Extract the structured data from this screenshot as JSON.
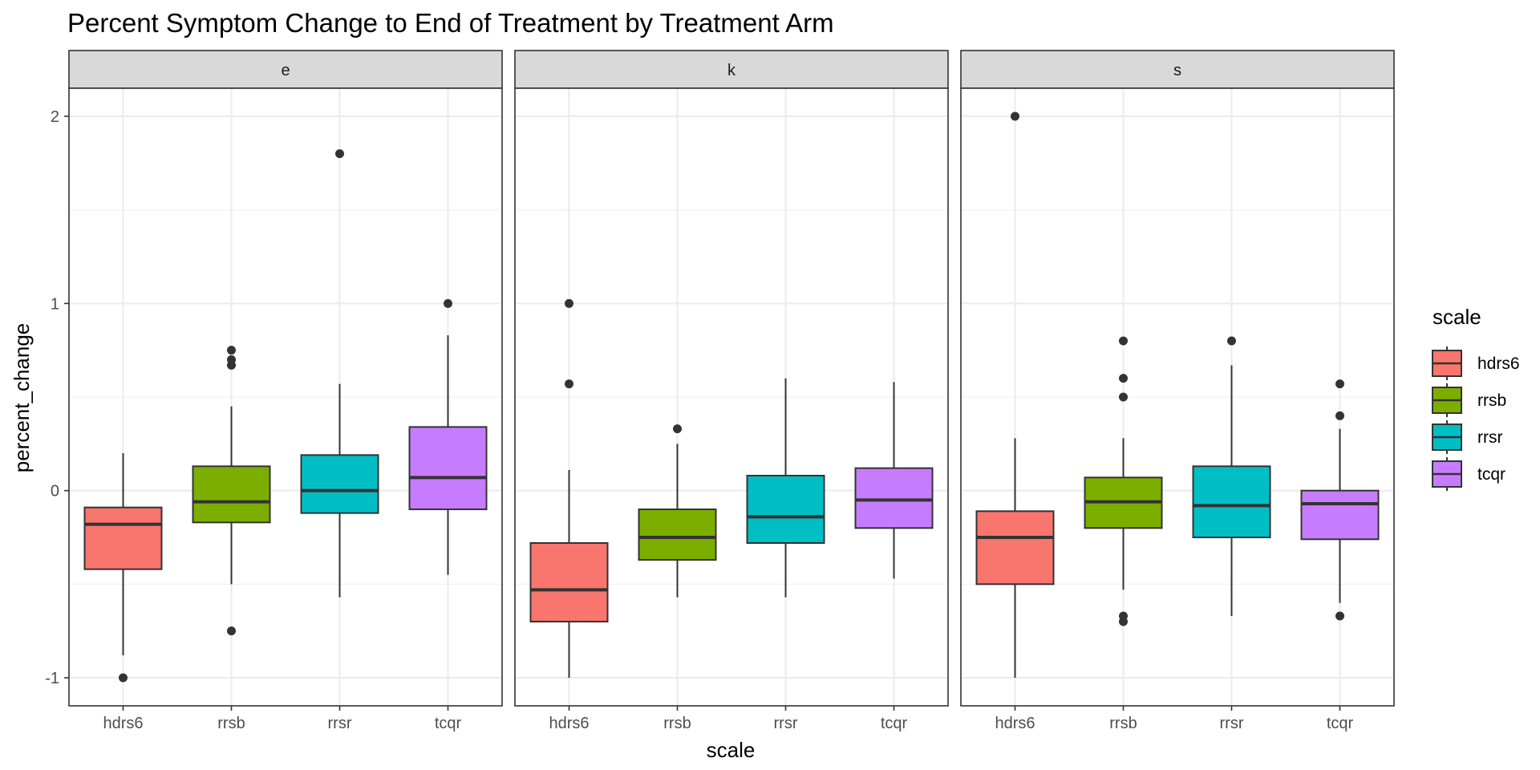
{
  "chart_data": {
    "type": "box",
    "title": "Percent Symptom Change to End of Treatment by Treatment Arm",
    "xlabel": "scale",
    "ylabel": "percent_change",
    "ylim": [
      -1.15,
      2.15
    ],
    "yticks": [
      -1,
      0,
      1,
      2
    ],
    "ytick_labels": [
      "-1",
      "0",
      "1",
      "2"
    ],
    "categories": [
      "hdrs6",
      "rrsb",
      "rrsr",
      "tcqr"
    ],
    "colors": {
      "hdrs6": "#F8766D",
      "rrsb": "#7CAE00",
      "rrsr": "#00BFC4",
      "tcqr": "#C77CFF"
    },
    "grid": true,
    "legend": {
      "title": "scale",
      "position": "right",
      "items": [
        "hdrs6",
        "rrsb",
        "rrsr",
        "tcqr"
      ]
    },
    "facets": [
      {
        "label": "e",
        "boxes": [
          {
            "category": "hdrs6",
            "lower_whisker": -0.88,
            "q1": -0.42,
            "median": -0.18,
            "q3": -0.09,
            "upper_whisker": 0.2,
            "outliers": [
              -1.0
            ]
          },
          {
            "category": "rrsb",
            "lower_whisker": -0.5,
            "q1": -0.17,
            "median": -0.06,
            "q3": 0.13,
            "upper_whisker": 0.45,
            "outliers": [
              0.75,
              0.7,
              0.67,
              -0.75
            ]
          },
          {
            "category": "rrsr",
            "lower_whisker": -0.57,
            "q1": -0.12,
            "median": 0.0,
            "q3": 0.19,
            "upper_whisker": 0.57,
            "outliers": [
              1.8
            ]
          },
          {
            "category": "tcqr",
            "lower_whisker": -0.45,
            "q1": -0.1,
            "median": 0.07,
            "q3": 0.34,
            "upper_whisker": 0.83,
            "outliers": [
              1.0
            ]
          }
        ]
      },
      {
        "label": "k",
        "boxes": [
          {
            "category": "hdrs6",
            "lower_whisker": -1.0,
            "q1": -0.7,
            "median": -0.53,
            "q3": -0.28,
            "upper_whisker": 0.11,
            "outliers": [
              1.0,
              0.57
            ]
          },
          {
            "category": "rrsb",
            "lower_whisker": -0.57,
            "q1": -0.37,
            "median": -0.25,
            "q3": -0.1,
            "upper_whisker": 0.25,
            "outliers": [
              0.33
            ]
          },
          {
            "category": "rrsr",
            "lower_whisker": -0.57,
            "q1": -0.28,
            "median": -0.14,
            "q3": 0.08,
            "upper_whisker": 0.6,
            "outliers": []
          },
          {
            "category": "tcqr",
            "lower_whisker": -0.47,
            "q1": -0.2,
            "median": -0.05,
            "q3": 0.12,
            "upper_whisker": 0.58,
            "outliers": []
          }
        ]
      },
      {
        "label": "s",
        "boxes": [
          {
            "category": "hdrs6",
            "lower_whisker": -1.0,
            "q1": -0.5,
            "median": -0.25,
            "q3": -0.11,
            "upper_whisker": 0.28,
            "outliers": [
              2.0
            ]
          },
          {
            "category": "rrsb",
            "lower_whisker": -0.53,
            "q1": -0.2,
            "median": -0.06,
            "q3": 0.07,
            "upper_whisker": 0.28,
            "outliers": [
              0.8,
              0.6,
              0.5,
              -0.67,
              -0.7
            ]
          },
          {
            "category": "rrsr",
            "lower_whisker": -0.67,
            "q1": -0.25,
            "median": -0.08,
            "q3": 0.13,
            "upper_whisker": 0.67,
            "outliers": [
              0.8
            ]
          },
          {
            "category": "tcqr",
            "lower_whisker": -0.6,
            "q1": -0.26,
            "median": -0.07,
            "q3": 0.0,
            "upper_whisker": 0.33,
            "outliers": [
              0.57,
              0.4,
              -0.67
            ]
          }
        ]
      }
    ]
  }
}
